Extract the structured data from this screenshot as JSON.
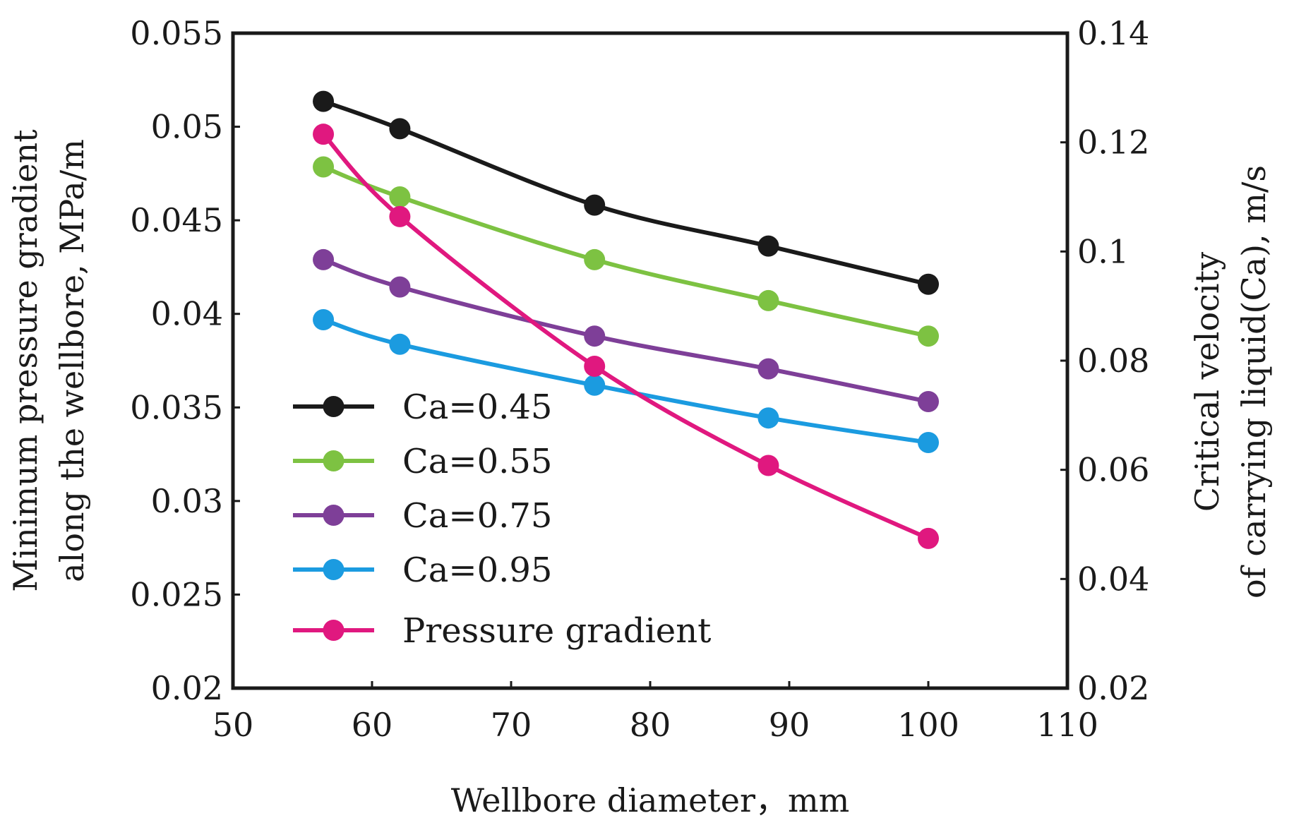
{
  "chart_data": {
    "type": "line",
    "title": "",
    "xlabel": "Wellbore diameter，mm",
    "ylabel_left": [
      "Minimum pressure gradient",
      "along the wellbore,  MPa/m"
    ],
    "ylabel_right": [
      "Critical velocity",
      "of carrying liquid(Ca),  m/s"
    ],
    "xlim": [
      50,
      110
    ],
    "ylim_left": [
      0.02,
      0.055
    ],
    "ylim_right": [
      0.02,
      0.14
    ],
    "x_ticks": [
      "50",
      "60",
      "70",
      "80",
      "90",
      "100",
      "110"
    ],
    "x_tick_values": [
      50,
      60,
      70,
      80,
      90,
      100,
      110
    ],
    "y_left_ticks": [
      "0.02",
      "0.025",
      "0.03",
      "0.035",
      "0.04",
      "0.045",
      "0.05",
      "0.055"
    ],
    "y_left_tick_values": [
      0.02,
      0.025,
      0.03,
      0.035,
      0.04,
      0.045,
      0.05,
      0.055
    ],
    "y_right_ticks": [
      "0.02",
      "0.04",
      "0.06",
      "0.08",
      "0.1",
      "0.12",
      "0.14"
    ],
    "y_right_tick_values": [
      0.02,
      0.04,
      0.06,
      0.08,
      0.1,
      0.12,
      0.14
    ],
    "grid": false,
    "legend_position": "lower-left",
    "series": [
      {
        "name": "Ca=0.45",
        "axis": "right",
        "color": "#1a1a1a",
        "x": [
          56.5,
          62,
          76,
          88.5,
          100
        ],
        "y": [
          0.1275,
          0.1225,
          0.1085,
          0.101,
          0.094
        ]
      },
      {
        "name": "Ca=0.55",
        "axis": "right",
        "color": "#7dc242",
        "x": [
          56.5,
          62,
          76,
          88.5,
          100
        ],
        "y": [
          0.1155,
          0.11,
          0.0985,
          0.091,
          0.0845
        ]
      },
      {
        "name": "Ca=0.75",
        "axis": "right",
        "color": "#7e3f98",
        "x": [
          56.5,
          62,
          76,
          88.5,
          100
        ],
        "y": [
          0.0985,
          0.0935,
          0.0845,
          0.0785,
          0.0725
        ]
      },
      {
        "name": "Ca=0.95",
        "axis": "right",
        "color": "#1b9be0",
        "x": [
          56.5,
          62,
          76,
          88.5,
          100
        ],
        "y": [
          0.0875,
          0.083,
          0.0755,
          0.0695,
          0.065
        ]
      },
      {
        "name": "Pressure gradient",
        "axis": "left",
        "color": "#e0187f",
        "x": [
          56.5,
          62,
          76,
          88.5,
          100
        ],
        "y": [
          0.0496,
          0.0452,
          0.0372,
          0.0319,
          0.028
        ]
      }
    ]
  }
}
